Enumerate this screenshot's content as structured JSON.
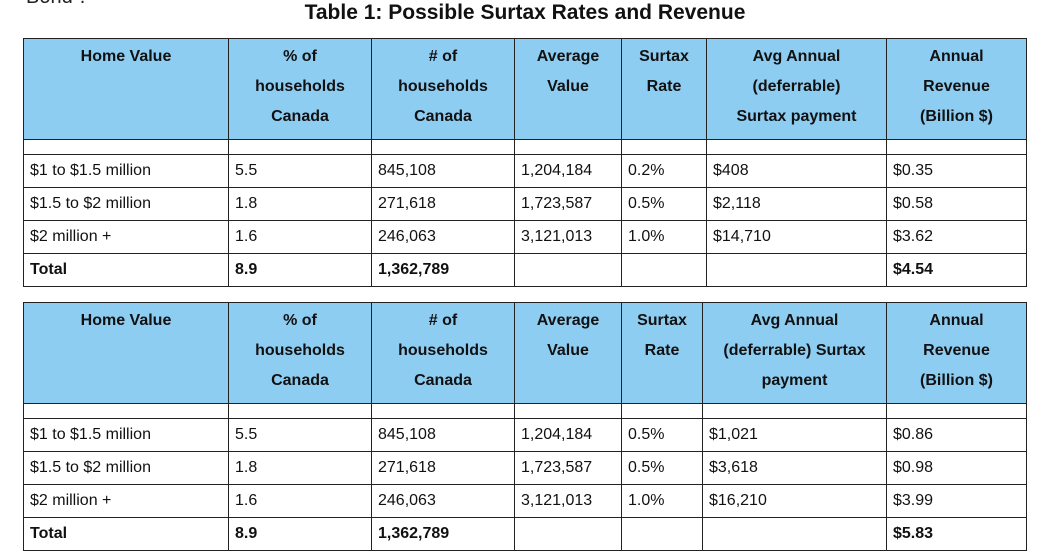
{
  "top_fragment": "Bond\".",
  "title": "Table 1: Possible Surtax Rates and Revenue",
  "table1": {
    "headers": [
      [
        "Home Value"
      ],
      [
        "% of",
        "households",
        "Canada"
      ],
      [
        "# of",
        "households",
        "Canada"
      ],
      [
        "Average",
        "Value"
      ],
      [
        "Surtax",
        "Rate"
      ],
      [
        "Avg Annual",
        "(deferrable)",
        "Surtax payment"
      ],
      [
        "Annual",
        "Revenue",
        "(Billion $)"
      ]
    ],
    "rows": [
      [
        "$1 to $1.5 million",
        "5.5",
        "845,108",
        "1,204,184",
        "0.2%",
        "$408",
        "$0.35"
      ],
      [
        "$1.5 to $2 million",
        "1.8",
        "271,618",
        "1,723,587",
        "0.5%",
        "$2,118",
        "$0.58"
      ],
      [
        "$2 million +",
        "1.6",
        "246,063",
        "3,121,013",
        "1.0%",
        "$14,710",
        "$3.62"
      ],
      [
        "Total",
        "8.9",
        "1,362,789",
        "",
        "",
        "",
        "$4.54"
      ]
    ]
  },
  "table2": {
    "headers": [
      [
        "Home Value"
      ],
      [
        "% of",
        "households",
        "Canada"
      ],
      [
        "# of",
        "households",
        "Canada"
      ],
      [
        "Average",
        "Value"
      ],
      [
        "Surtax",
        "Rate"
      ],
      [
        "Avg Annual",
        "(deferrable) Surtax",
        "payment"
      ],
      [
        "Annual",
        "Revenue",
        "(Billion $)"
      ]
    ],
    "rows": [
      [
        "$1 to $1.5 million",
        "5.5",
        "845,108",
        "1,204,184",
        "0.5%",
        "$1,021",
        "$0.86"
      ],
      [
        "$1.5 to $2 million",
        "1.8",
        "271,618",
        "1,723,587",
        "0.5%",
        "$3,618",
        "$0.98"
      ],
      [
        "$2 million +",
        "1.6",
        "246,063",
        "3,121,013",
        "1.0%",
        "$16,210",
        "$3.99"
      ],
      [
        "Total",
        "8.9",
        "1,362,789",
        "",
        "",
        "",
        "$5.83"
      ]
    ]
  }
}
